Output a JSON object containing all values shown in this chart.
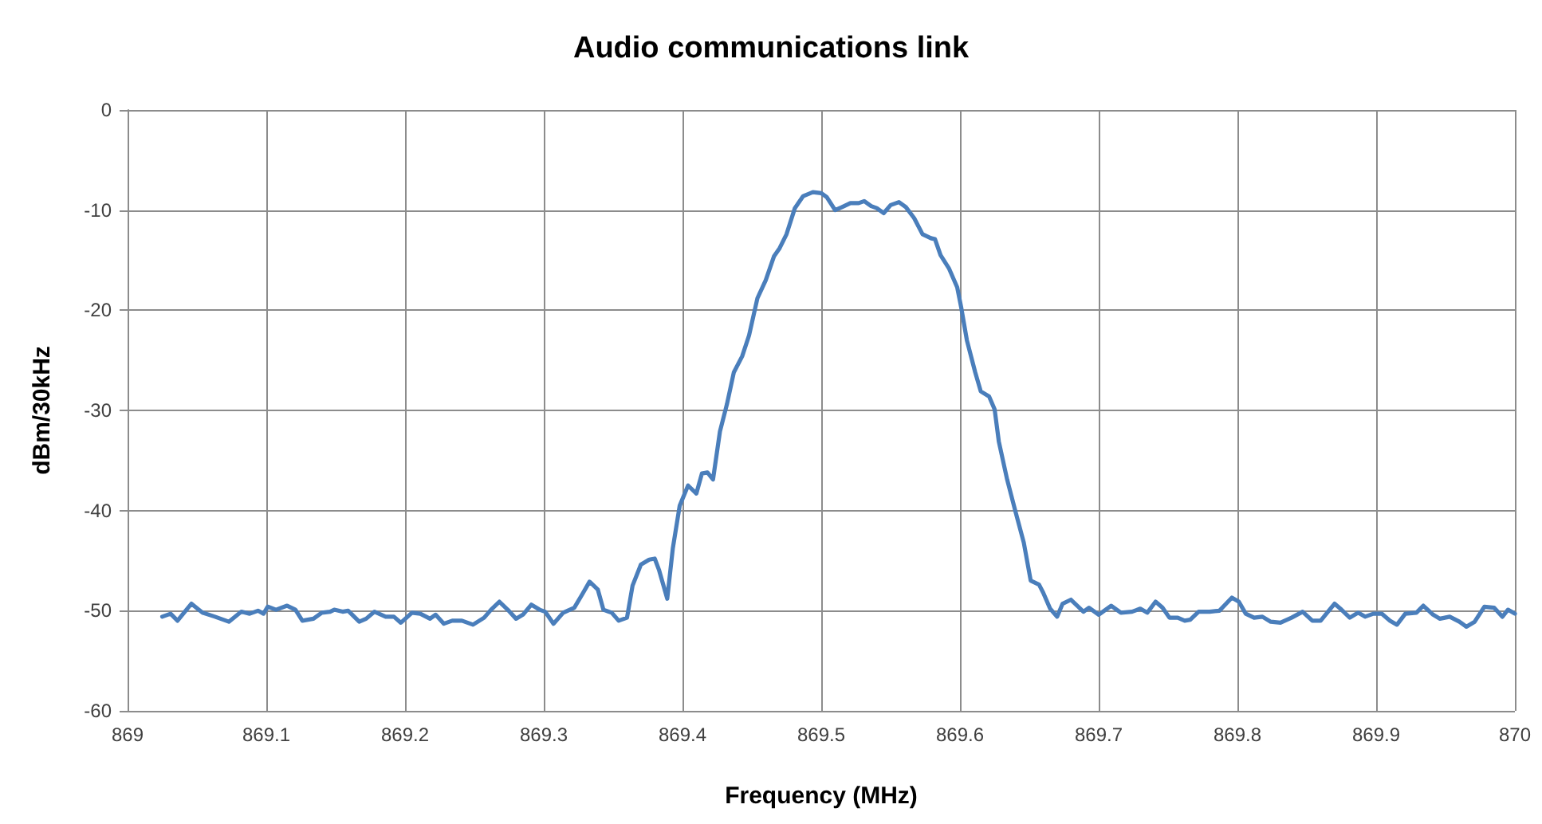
{
  "chart_data": {
    "type": "line",
    "title": "Audio communications link",
    "xlabel": "Frequency (MHz)",
    "ylabel": "dBm/30kHz",
    "xlim": [
      869,
      870
    ],
    "xticks": [
      869,
      869.1,
      869.2,
      869.3,
      869.4,
      869.5,
      869.6,
      869.7,
      869.8,
      869.9,
      870
    ],
    "ylim": [
      -60,
      0
    ],
    "yticks": [
      -60,
      -50,
      -40,
      -30,
      -20,
      -10,
      0
    ],
    "grid": true,
    "marker": "none",
    "line_style": "solid",
    "series": [
      {
        "color": "#4a7ebb",
        "x": [
          869.025,
          869.031,
          869.036,
          869.046,
          869.054,
          869.063,
          869.073,
          869.082,
          869.088,
          869.094,
          869.098,
          869.101,
          869.107,
          869.115,
          869.121,
          869.126,
          869.134,
          869.14,
          869.146,
          869.149,
          869.155,
          869.159,
          869.167,
          869.172,
          869.178,
          869.186,
          869.192,
          869.197,
          869.205,
          869.211,
          869.218,
          869.222,
          869.228,
          869.234,
          869.241,
          869.249,
          869.257,
          869.262,
          869.268,
          869.274,
          869.28,
          869.285,
          869.291,
          869.297,
          869.301,
          869.307,
          869.314,
          869.322,
          869.328,
          869.333,
          869.339,
          869.343,
          869.349,
          869.354,
          869.36,
          869.364,
          869.37,
          869.376,
          869.38,
          869.383,
          869.389,
          869.393,
          869.398,
          869.404,
          869.41,
          869.414,
          869.418,
          869.422,
          869.427,
          869.432,
          869.437,
          869.443,
          869.448,
          869.454,
          869.46,
          869.466,
          869.47,
          869.475,
          869.481,
          869.487,
          869.494,
          869.5,
          869.504,
          869.51,
          869.515,
          869.521,
          869.527,
          869.531,
          869.536,
          869.54,
          869.545,
          869.55,
          869.556,
          869.561,
          869.567,
          869.573,
          869.579,
          869.582,
          869.586,
          869.592,
          869.598,
          869.601,
          869.605,
          869.611,
          869.615,
          869.621,
          869.625,
          869.628,
          869.634,
          869.64,
          869.646,
          869.651,
          869.657,
          869.66,
          869.665,
          869.67,
          869.674,
          869.68,
          869.689,
          869.693,
          869.7,
          869.705,
          869.709,
          869.716,
          869.724,
          869.73,
          869.735,
          869.741,
          869.746,
          869.751,
          869.757,
          869.762,
          869.766,
          869.772,
          869.78,
          869.787,
          869.796,
          869.801,
          869.806,
          869.812,
          869.818,
          869.824,
          869.831,
          869.839,
          869.847,
          869.854,
          869.86,
          869.87,
          869.875,
          869.881,
          869.887,
          869.892,
          869.898,
          869.904,
          869.91,
          869.915,
          869.921,
          869.929,
          869.934,
          869.941,
          869.946,
          869.953,
          869.96,
          869.965,
          869.971,
          869.978,
          869.985,
          869.991,
          869.995,
          870.0
        ],
        "values": [
          -50.6,
          -50.3,
          -51.0,
          -49.3,
          -50.2,
          -50.6,
          -51.1,
          -50.1,
          -50.3,
          -50.0,
          -50.3,
          -49.6,
          -49.9,
          -49.5,
          -49.9,
          -51.0,
          -50.8,
          -50.2,
          -50.1,
          -49.9,
          -50.1,
          -50.0,
          -51.1,
          -50.8,
          -50.1,
          -50.6,
          -50.6,
          -51.2,
          -50.2,
          -50.3,
          -50.8,
          -50.4,
          -51.3,
          -51.0,
          -51.0,
          -51.4,
          -50.7,
          -49.9,
          -49.1,
          -49.9,
          -50.8,
          -50.4,
          -49.4,
          -49.9,
          -50.1,
          -51.3,
          -50.2,
          -49.7,
          -48.3,
          -47.1,
          -47.9,
          -49.9,
          -50.2,
          -51.0,
          -50.7,
          -47.5,
          -45.4,
          -44.9,
          -44.8,
          -45.9,
          -48.8,
          -43.8,
          -39.5,
          -37.5,
          -38.3,
          -36.3,
          -36.2,
          -36.9,
          -32.1,
          -29.4,
          -26.2,
          -24.6,
          -22.5,
          -18.8,
          -17.0,
          -14.6,
          -13.8,
          -12.4,
          -9.8,
          -8.6,
          -8.2,
          -8.3,
          -8.7,
          -10.0,
          -9.7,
          -9.3,
          -9.3,
          -9.1,
          -9.6,
          -9.8,
          -10.3,
          -9.5,
          -9.2,
          -9.7,
          -10.8,
          -12.4,
          -12.8,
          -12.9,
          -14.5,
          -15.8,
          -17.7,
          -19.8,
          -23.0,
          -26.2,
          -28.1,
          -28.6,
          -29.9,
          -33.1,
          -36.9,
          -40.1,
          -43.2,
          -47.0,
          -47.4,
          -48.2,
          -49.8,
          -50.6,
          -49.3,
          -48.9,
          -50.1,
          -49.7,
          -50.4,
          -49.9,
          -49.5,
          -50.2,
          -50.1,
          -49.8,
          -50.2,
          -49.1,
          -49.7,
          -50.7,
          -50.7,
          -51.0,
          -50.9,
          -50.1,
          -50.1,
          -50.0,
          -48.7,
          -49.1,
          -50.3,
          -50.7,
          -50.6,
          -51.1,
          -51.2,
          -50.7,
          -50.1,
          -51.0,
          -51.0,
          -49.3,
          -49.9,
          -50.7,
          -50.2,
          -50.6,
          -50.3,
          -50.3,
          -51.0,
          -51.4,
          -50.3,
          -50.2,
          -49.5,
          -50.4,
          -50.8,
          -50.6,
          -51.1,
          -51.6,
          -51.1,
          -49.6,
          -49.7,
          -50.6,
          -49.9,
          -50.3
        ]
      }
    ]
  }
}
